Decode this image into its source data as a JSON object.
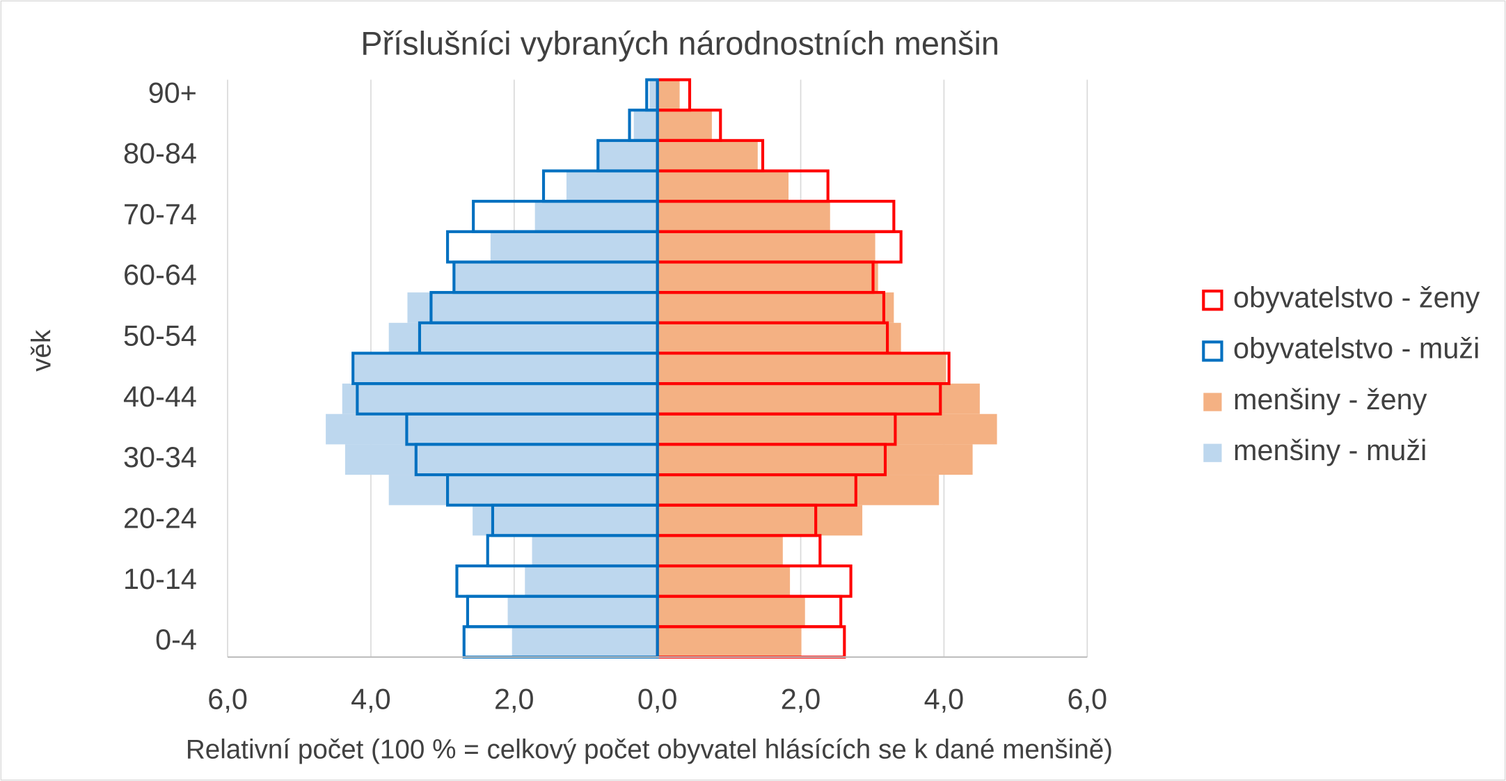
{
  "chart_data": {
    "type": "pyramid",
    "title": "Příslušníci vybraných národnostních menšin",
    "x_label": "Relativní počet (100 % = celkový počet obyvatel hlásících se k dané menšině)",
    "y_label": "věk",
    "categories": [
      "0-4",
      null,
      "10-14",
      null,
      "20-24",
      null,
      "30-34",
      null,
      "40-44",
      null,
      "50-54",
      null,
      "60-64",
      null,
      "70-74",
      null,
      "80-84",
      null,
      "90+"
    ],
    "series": [
      {
        "name": "obyvatelstvo - ženy",
        "color": "#ff0000",
        "style": "outline",
        "values": [
          2.61,
          2.56,
          2.7,
          2.27,
          2.21,
          2.77,
          3.18,
          3.32,
          3.95,
          4.07,
          3.21,
          3.16,
          3.01,
          3.4,
          3.3,
          2.38,
          1.47,
          0.88,
          0.45
        ]
      },
      {
        "name": "obyvatelstvo - muži",
        "color": "#0070c0",
        "style": "outline",
        "values": [
          -2.7,
          -2.65,
          -2.8,
          -2.37,
          -2.3,
          -2.93,
          -3.37,
          -3.5,
          -4.19,
          -4.25,
          -3.32,
          -3.16,
          -2.84,
          -2.93,
          -2.57,
          -1.59,
          -0.83,
          -0.39,
          -0.15
        ]
      },
      {
        "name": "menšiny - ženy",
        "color": "#f4b183",
        "style": "fill",
        "values": [
          2.01,
          2.06,
          1.85,
          1.75,
          2.86,
          3.93,
          4.4,
          4.74,
          4.5,
          4.03,
          3.4,
          3.3,
          3.08,
          3.04,
          2.41,
          1.83,
          1.4,
          0.76,
          0.31
        ]
      },
      {
        "name": "menšiny - muži",
        "color": "#bdd7ee",
        "style": "fill",
        "values": [
          -2.03,
          -2.09,
          -1.85,
          -1.75,
          -2.58,
          -3.75,
          -4.36,
          -4.63,
          -4.4,
          -4.23,
          -3.75,
          -3.49,
          -2.86,
          -2.33,
          -1.71,
          -1.27,
          -0.83,
          -0.33,
          -0.11
        ]
      }
    ],
    "xlim": [
      -6,
      6
    ],
    "xticks": [
      {
        "value": -6,
        "label": "6,0"
      },
      {
        "value": -4,
        "label": "4,0"
      },
      {
        "value": -2,
        "label": "2,0"
      },
      {
        "value": 0,
        "label": "0,0"
      },
      {
        "value": 2,
        "label": "2,0"
      },
      {
        "value": 4,
        "label": "4,0"
      },
      {
        "value": 6,
        "label": "6,0"
      }
    ],
    "grid": true,
    "legend": "right"
  }
}
